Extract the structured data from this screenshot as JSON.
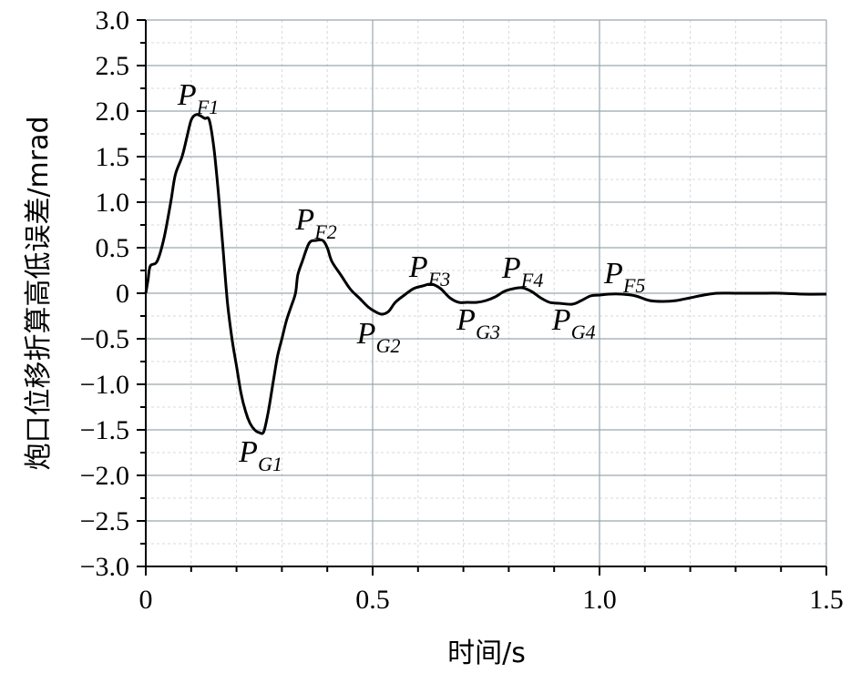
{
  "chart_data": {
    "type": "line",
    "xlabel": "时间/s",
    "ylabel": "炮口位移折算高低误差/mrad",
    "xlim": [
      0,
      1.5
    ],
    "ylim": [
      -3.0,
      3.0
    ],
    "x_ticks": [
      {
        "value": 0,
        "label": "0"
      },
      {
        "value": 0.5,
        "label": "0.5"
      },
      {
        "value": 1.0,
        "label": "1.0"
      },
      {
        "value": 1.5,
        "label": "1.5"
      }
    ],
    "y_ticks": [
      {
        "value": 3.0,
        "label": "3.0"
      },
      {
        "value": 2.5,
        "label": "2.5"
      },
      {
        "value": 2.0,
        "label": "2.0"
      },
      {
        "value": 1.5,
        "label": "1.5"
      },
      {
        "value": 1.0,
        "label": "1.0"
      },
      {
        "value": 0.5,
        "label": "0.5"
      },
      {
        "value": 0,
        "label": "0"
      },
      {
        "value": -0.5,
        "label": "−0.5"
      },
      {
        "value": -1.0,
        "label": "−1.0"
      },
      {
        "value": -1.5,
        "label": "−1.5"
      },
      {
        "value": -2.0,
        "label": "−2.0"
      },
      {
        "value": -2.5,
        "label": "−2.5"
      },
      {
        "value": -3.0,
        "label": "−3.0"
      }
    ],
    "grid": true,
    "series": [
      {
        "points": [
          [
            0.0,
            0.0
          ],
          [
            0.005,
            0.15
          ],
          [
            0.01,
            0.3
          ],
          [
            0.025,
            0.35
          ],
          [
            0.04,
            0.6
          ],
          [
            0.055,
            1.0
          ],
          [
            0.065,
            1.3
          ],
          [
            0.08,
            1.5
          ],
          [
            0.09,
            1.7
          ],
          [
            0.1,
            1.9
          ],
          [
            0.11,
            1.96
          ],
          [
            0.12,
            1.95
          ],
          [
            0.13,
            1.92
          ],
          [
            0.14,
            1.9
          ],
          [
            0.15,
            1.6
          ],
          [
            0.16,
            1.1
          ],
          [
            0.17,
            0.5
          ],
          [
            0.18,
            -0.1
          ],
          [
            0.19,
            -0.5
          ],
          [
            0.2,
            -0.8
          ],
          [
            0.21,
            -1.1
          ],
          [
            0.22,
            -1.3
          ],
          [
            0.23,
            -1.43
          ],
          [
            0.24,
            -1.5
          ],
          [
            0.25,
            -1.53
          ],
          [
            0.26,
            -1.52
          ],
          [
            0.27,
            -1.3
          ],
          [
            0.28,
            -1.0
          ],
          [
            0.29,
            -0.7
          ],
          [
            0.3,
            -0.5
          ],
          [
            0.31,
            -0.3
          ],
          [
            0.32,
            -0.15
          ],
          [
            0.33,
            0.0
          ],
          [
            0.335,
            0.2
          ],
          [
            0.345,
            0.35
          ],
          [
            0.36,
            0.55
          ],
          [
            0.375,
            0.58
          ],
          [
            0.39,
            0.58
          ],
          [
            0.4,
            0.5
          ],
          [
            0.41,
            0.35
          ],
          [
            0.43,
            0.2
          ],
          [
            0.45,
            0.05
          ],
          [
            0.47,
            -0.05
          ],
          [
            0.49,
            -0.15
          ],
          [
            0.505,
            -0.2
          ],
          [
            0.52,
            -0.23
          ],
          [
            0.535,
            -0.2
          ],
          [
            0.55,
            -0.1
          ],
          [
            0.57,
            -0.02
          ],
          [
            0.59,
            0.05
          ],
          [
            0.61,
            0.08
          ],
          [
            0.63,
            0.1
          ],
          [
            0.65,
            0.05
          ],
          [
            0.67,
            -0.05
          ],
          [
            0.69,
            -0.1
          ],
          [
            0.71,
            -0.1
          ],
          [
            0.73,
            -0.1
          ],
          [
            0.75,
            -0.08
          ],
          [
            0.77,
            -0.04
          ],
          [
            0.79,
            0.02
          ],
          [
            0.81,
            0.05
          ],
          [
            0.83,
            0.06
          ],
          [
            0.85,
            0.02
          ],
          [
            0.87,
            -0.05
          ],
          [
            0.89,
            -0.1
          ],
          [
            0.91,
            -0.11
          ],
          [
            0.94,
            -0.12
          ],
          [
            0.96,
            -0.08
          ],
          [
            0.98,
            -0.03
          ],
          [
            1.0,
            -0.02
          ],
          [
            1.02,
            -0.01
          ],
          [
            1.05,
            -0.01
          ],
          [
            1.08,
            -0.03
          ],
          [
            1.11,
            -0.08
          ],
          [
            1.14,
            -0.09
          ],
          [
            1.17,
            -0.08
          ],
          [
            1.2,
            -0.05
          ],
          [
            1.23,
            -0.02
          ],
          [
            1.26,
            0.0
          ],
          [
            1.3,
            0.0
          ],
          [
            1.35,
            0.0
          ],
          [
            1.4,
            0.0
          ],
          [
            1.45,
            -0.01
          ],
          [
            1.5,
            -0.01
          ]
        ]
      }
    ],
    "annotations": [
      {
        "main": "P",
        "sub": "F1",
        "x": 0.07,
        "y": 2.07
      },
      {
        "main": "P",
        "sub": "G1",
        "x": 0.205,
        "y": -1.85
      },
      {
        "main": "P",
        "sub": "F2",
        "x": 0.33,
        "y": 0.7
      },
      {
        "main": "P",
        "sub": "G2",
        "x": 0.465,
        "y": -0.55
      },
      {
        "main": "P",
        "sub": "F3",
        "x": 0.58,
        "y": 0.18
      },
      {
        "main": "P",
        "sub": "G3",
        "x": 0.685,
        "y": -0.4
      },
      {
        "main": "P",
        "sub": "F4",
        "x": 0.785,
        "y": 0.17
      },
      {
        "main": "P",
        "sub": "G4",
        "x": 0.895,
        "y": -0.4
      },
      {
        "main": "P",
        "sub": "F5",
        "x": 1.01,
        "y": 0.11
      }
    ]
  }
}
